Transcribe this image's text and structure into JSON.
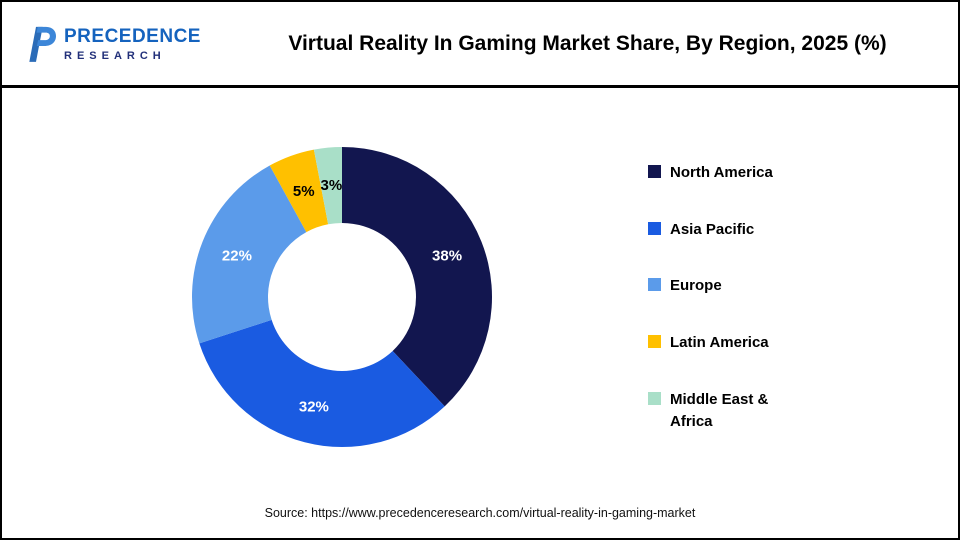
{
  "header": {
    "logo": {
      "line1": "PRECEDENCE",
      "line2": "RESEARCH"
    },
    "title": "Virtual Reality In Gaming Market Share, By Region, 2025 (%)"
  },
  "chart_data": {
    "type": "pie",
    "subtype": "donut",
    "title": "Virtual Reality In Gaming Market Share, By Region, 2025 (%)",
    "categories": [
      "North America",
      "Asia Pacific",
      "Europe",
      "Latin America",
      "Middle East & Africa"
    ],
    "values": [
      38,
      32,
      22,
      5,
      3
    ],
    "unit": "%",
    "colors": [
      "#12164F",
      "#1A5BE1",
      "#5B9BEA",
      "#FFC000",
      "#A9DFC8"
    ],
    "label_colors": [
      "#ffffff",
      "#ffffff",
      "#ffffff",
      "#000000",
      "#000000"
    ],
    "start_angle": "top",
    "direction": "clockwise",
    "inner_radius_ratio": 0.5,
    "legend_position": "right",
    "grid": false
  },
  "footer": {
    "source": "Source: https://www.precedenceresearch.com/virtual-reality-in-gaming-market"
  }
}
